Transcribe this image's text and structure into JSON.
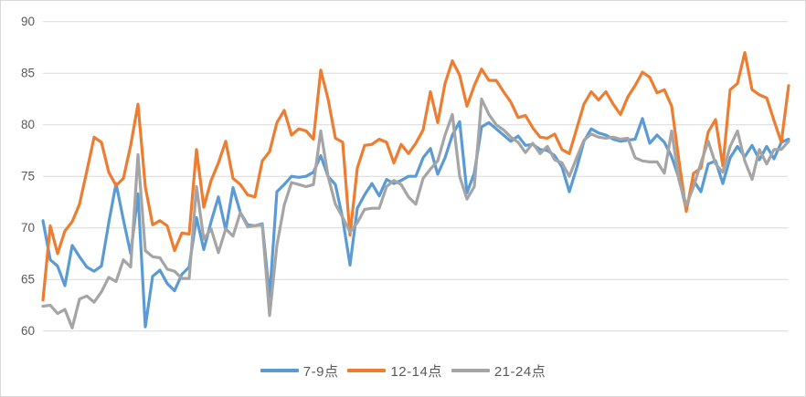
{
  "chart_data": {
    "type": "line",
    "title": "",
    "xlabel": "",
    "ylabel": "",
    "x_axis": {
      "labels_visible": false,
      "point_count": 103
    },
    "y_axis": {
      "min": 60,
      "max": 90,
      "step": 5,
      "ticks": [
        90,
        85,
        80,
        75,
        70,
        65,
        60
      ]
    },
    "grid": true,
    "legend_position": "bottom-center",
    "series": [
      {
        "name": "7-9点",
        "color": "#5B9BD5",
        "values": [
          70.7,
          66.9,
          66.3,
          64.4,
          68.3,
          67.2,
          66.2,
          65.8,
          66.3,
          70.5,
          74.3,
          70.8,
          67.5,
          73.3,
          60.4,
          65.3,
          65.9,
          64.6,
          63.9,
          65.5,
          66.2,
          71.0,
          67.9,
          70.6,
          73.0,
          69.8,
          73.9,
          71.5,
          70.3,
          70.2,
          70.4,
          63.3,
          73.5,
          74.2,
          75.0,
          74.9,
          75.0,
          75.4,
          77.0,
          75.0,
          74.2,
          70.9,
          66.4,
          71.9,
          73.2,
          74.3,
          73.1,
          74.7,
          74.3,
          74.6,
          75.0,
          75.0,
          76.8,
          77.7,
          75.2,
          76.8,
          79.0,
          80.3,
          73.4,
          75.3,
          79.8,
          80.2,
          79.6,
          79.0,
          78.4,
          78.9,
          78.0,
          78.1,
          77.6,
          77.5,
          77.0,
          75.9,
          73.5,
          75.8,
          78.4,
          79.6,
          79.2,
          79.0,
          78.6,
          78.4,
          78.5,
          78.6,
          80.6,
          78.2,
          79.0,
          78.3,
          76.9,
          74.8,
          71.8,
          74.6,
          73.5,
          76.2,
          76.5,
          74.3,
          76.8,
          77.9,
          76.9,
          78.0,
          76.6,
          77.9,
          76.7,
          78.3,
          78.6
        ]
      },
      {
        "name": "12-14点",
        "color": "#ED7D31",
        "values": [
          63.0,
          70.2,
          67.5,
          69.7,
          70.6,
          72.3,
          75.5,
          78.8,
          78.3,
          75.4,
          74.1,
          74.8,
          78.0,
          82.0,
          74.0,
          70.3,
          70.7,
          70.2,
          67.8,
          69.5,
          69.4,
          77.6,
          72.0,
          74.6,
          76.3,
          78.4,
          74.8,
          74.2,
          73.2,
          73.0,
          76.5,
          77.4,
          80.2,
          81.4,
          79.0,
          79.6,
          79.4,
          78.6,
          85.3,
          82.5,
          78.7,
          78.3,
          69.3,
          75.8,
          78.0,
          78.1,
          78.6,
          78.3,
          76.3,
          78.1,
          77.2,
          78.2,
          79.5,
          83.2,
          80.2,
          84.0,
          86.2,
          84.8,
          81.8,
          83.8,
          85.4,
          84.3,
          84.3,
          83.2,
          82.2,
          80.7,
          80.9,
          79.7,
          78.8,
          78.7,
          79.1,
          77.6,
          77.2,
          79.6,
          82.0,
          83.2,
          82.4,
          83.2,
          82.0,
          81.0,
          82.7,
          83.8,
          85.1,
          84.6,
          83.1,
          83.4,
          81.8,
          76.5,
          71.6,
          75.3,
          75.8,
          79.3,
          80.5,
          76.0,
          83.4,
          84.0,
          87.0,
          83.4,
          82.9,
          82.6,
          80.4,
          78.3,
          83.8
        ]
      },
      {
        "name": "21-24点",
        "color": "#A5A5A5",
        "values": [
          62.4,
          62.5,
          61.7,
          62.1,
          60.3,
          63.1,
          63.4,
          62.8,
          63.8,
          65.2,
          64.8,
          66.9,
          66.2,
          77.1,
          67.8,
          67.2,
          67.1,
          66.0,
          65.8,
          65.1,
          65.1,
          74.0,
          68.9,
          69.9,
          67.6,
          69.9,
          69.2,
          71.5,
          70.1,
          70.2,
          70.3,
          61.5,
          68.3,
          72.2,
          74.4,
          74.2,
          74.0,
          74.2,
          79.4,
          75.0,
          72.3,
          71.0,
          69.6,
          70.5,
          71.8,
          71.9,
          71.9,
          74.0,
          74.6,
          74.2,
          73.0,
          72.3,
          74.8,
          75.7,
          76.5,
          79.0,
          81.0,
          75.0,
          72.8,
          74.0,
          82.5,
          81.0,
          80.0,
          79.5,
          78.8,
          78.3,
          77.3,
          78.2,
          77.2,
          77.9,
          76.6,
          76.3,
          75.0,
          76.8,
          78.5,
          79.1,
          78.8,
          78.7,
          78.8,
          78.6,
          78.7,
          76.8,
          76.5,
          76.4,
          76.4,
          75.3,
          79.4,
          74.6,
          72.2,
          74.0,
          76.3,
          78.4,
          76.2,
          75.4,
          77.9,
          79.4,
          76.5,
          74.7,
          77.6,
          76.2,
          77.6,
          77.6,
          78.4
        ]
      }
    ]
  },
  "colors": {
    "background": "#FFFFFF",
    "border": "#D9D9D9",
    "gridline": "#D9D9D9",
    "axis_label": "#595959",
    "legend_text": "#595959"
  }
}
